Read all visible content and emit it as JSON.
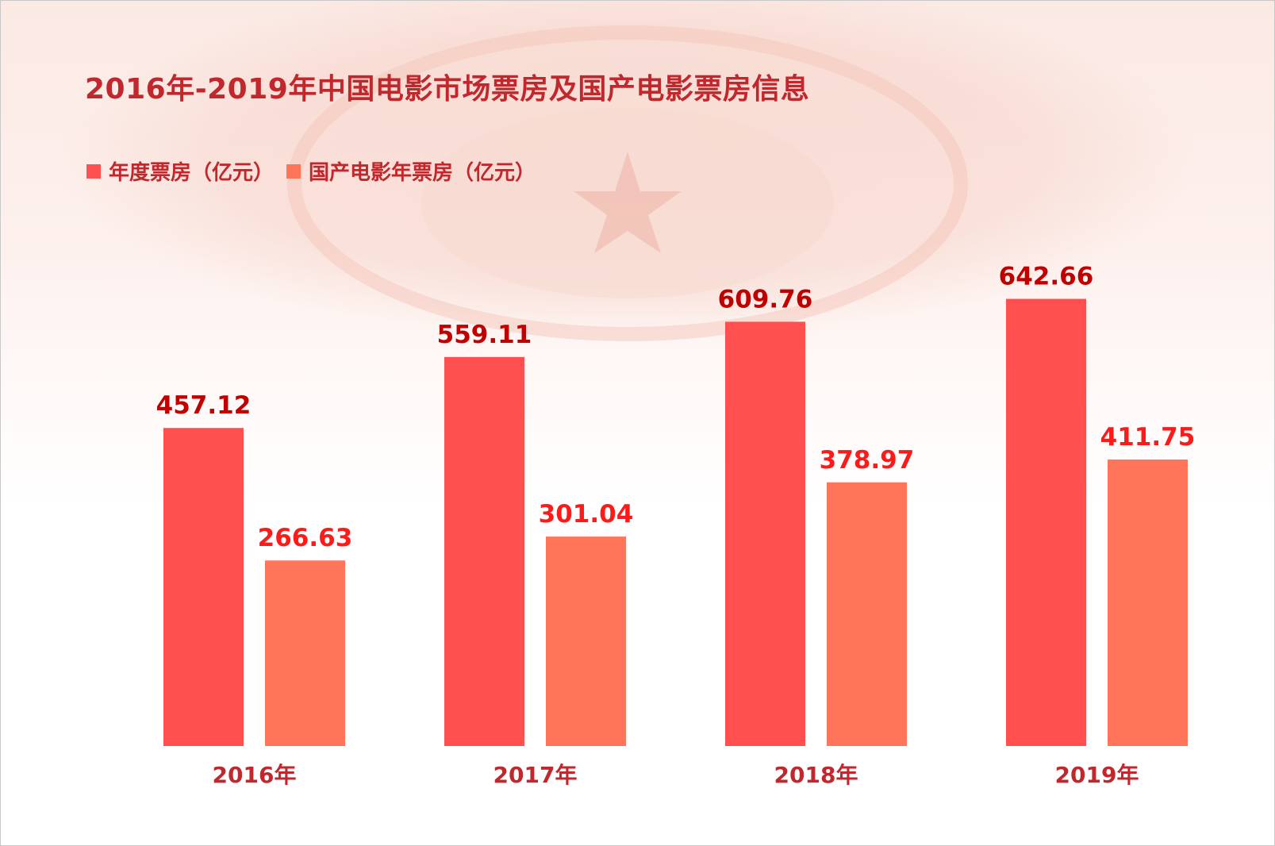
{
  "title": "2016年-2019年中国电影市场票房及国产电影票房信息",
  "colors": {
    "series_1": "#ff4f4f",
    "series_2": "#ff7559",
    "label_1": "#c00000",
    "label_2": "#ff1a1a",
    "text": "#c0282e"
  },
  "chart_data": {
    "type": "bar",
    "title": "2016年-2019年中国电影市场票房及国产电影票房信息",
    "categories": [
      "2016年",
      "2017年",
      "2018年",
      "2019年"
    ],
    "series": [
      {
        "name": "年度票房（亿元）",
        "values": [
          457.12,
          559.11,
          609.76,
          642.66
        ]
      },
      {
        "name": "国产电影年票房（亿元）",
        "values": [
          266.63,
          301.04,
          378.97,
          411.75
        ]
      }
    ],
    "data_labels": [
      [
        "457.12",
        "559.11",
        "609.76",
        "642.66"
      ],
      [
        "266.63",
        "301.04",
        "378.97",
        "411.75"
      ]
    ],
    "ylim": [
      0,
      750
    ],
    "legend_position": "top-left",
    "grid": false,
    "xlabel": "",
    "ylabel": ""
  }
}
